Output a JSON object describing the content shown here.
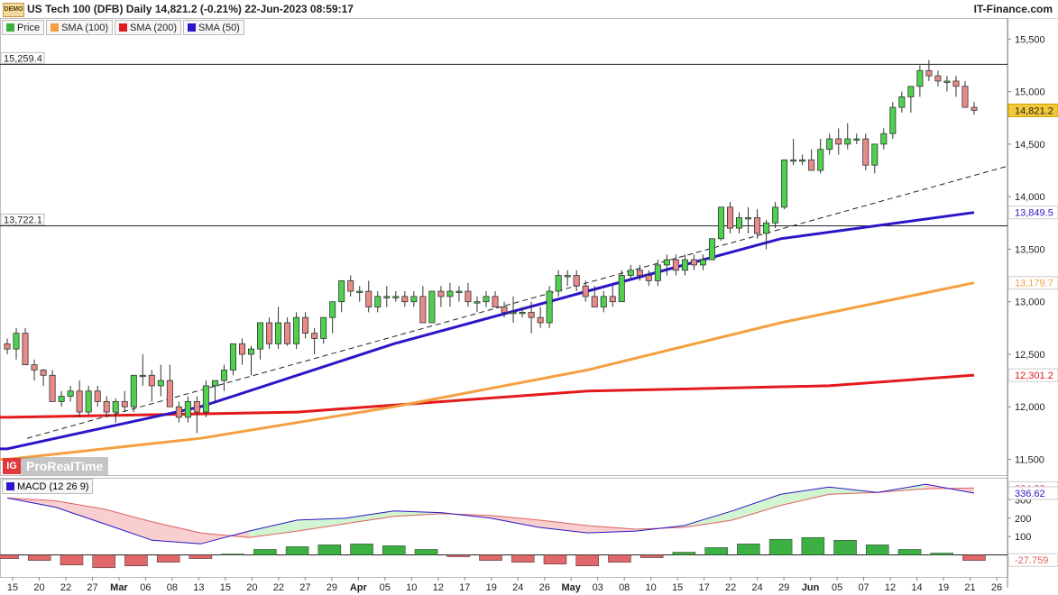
{
  "header": {
    "badge": "DEMO",
    "title": "US Tech 100 (DFB) Daily 14,821.2 (-0.21%) 22-Jun-2023 08:59:17",
    "brand": "IT-Finance.com"
  },
  "legend": [
    {
      "label": "Price",
      "color": "#3cb043"
    },
    {
      "label": "SMA (100)",
      "color": "#f5a040"
    },
    {
      "label": "SMA (200)",
      "color": "#e3191b"
    },
    {
      "label": "SMA (50)",
      "color": "#2a16c8"
    }
  ],
  "logo": {
    "badge": "IG",
    "text": "ProRealTime"
  },
  "macd_label": "MACD (12 26 9)",
  "colors": {
    "up": "#4ed24e",
    "down": "#e88a8a",
    "sma50": "#2a16c8",
    "sma100": "#f5a040",
    "sma200": "#e3191b",
    "hist": "#3cb043",
    "hist_neg": "#e0686a"
  },
  "chart_data": [
    {
      "type": "candlestick",
      "ylim": [
        11350,
        15700
      ],
      "y_ticks": [
        "11,500",
        "12,000",
        "12,500",
        "13,000",
        "13,500",
        "14,000",
        "14,500",
        "15,000",
        "15,500"
      ],
      "y_tick_values": [
        11500,
        12000,
        12500,
        13000,
        13500,
        14000,
        14500,
        15000,
        15500
      ],
      "x_tick_labels": [
        "15",
        "20",
        "22",
        "27",
        "Mar",
        "06",
        "08",
        "13",
        "15",
        "20",
        "22",
        "27",
        "29",
        "Apr",
        "05",
        "10",
        "12",
        "17",
        "19",
        "24",
        "26",
        "May",
        "03",
        "08",
        "10",
        "15",
        "17",
        "22",
        "24",
        "29",
        "Jun",
        "05",
        "07",
        "12",
        "14",
        "19",
        "21",
        "26"
      ],
      "levels": [
        {
          "label": "15,259.4",
          "value": 15259.4
        },
        {
          "label": "13,722.1",
          "value": 13722.1
        }
      ],
      "value_tags": [
        {
          "label": "14,821.2",
          "value": 14821.2,
          "color": "#f3c93a"
        },
        {
          "label": "13,849.5",
          "value": 13849.5,
          "color": "#2a16c8"
        },
        {
          "label": "13,179.7",
          "value": 13179.7,
          "color": "#f5a040"
        },
        {
          "label": "12,301.2",
          "value": 12301.2,
          "color": "#e3191b"
        }
      ],
      "trendline": {
        "from": 11700,
        "to": 14290
      },
      "candles": [
        [
          12600,
          12650,
          12500,
          12550
        ],
        [
          12550,
          12750,
          12450,
          12700
        ],
        [
          12700,
          12750,
          12400,
          12400
        ],
        [
          12400,
          12450,
          12250,
          12350
        ],
        [
          12350,
          12360,
          12200,
          12300
        ],
        [
          12300,
          12350,
          12050,
          12050
        ],
        [
          12050,
          12150,
          12000,
          12100
        ],
        [
          12100,
          12200,
          12050,
          12150
        ],
        [
          12150,
          12250,
          11900,
          11950
        ],
        [
          11950,
          12200,
          11920,
          12150
        ],
        [
          12150,
          12200,
          12000,
          12050
        ],
        [
          12050,
          12100,
          11900,
          11950
        ],
        [
          11950,
          12080,
          11850,
          12050
        ],
        [
          12050,
          12150,
          11950,
          12000
        ],
        [
          12000,
          12300,
          11950,
          12300
        ],
        [
          12300,
          12500,
          12200,
          12300
        ],
        [
          12300,
          12350,
          12050,
          12200
        ],
        [
          12200,
          12400,
          12100,
          12250
        ],
        [
          12250,
          12400,
          12000,
          12000
        ],
        [
          12000,
          12050,
          11850,
          11900
        ],
        [
          11900,
          12100,
          11850,
          12050
        ],
        [
          12050,
          12100,
          11750,
          11950
        ],
        [
          11950,
          12250,
          11900,
          12200
        ],
        [
          12200,
          12250,
          12050,
          12250
        ],
        [
          12250,
          12400,
          12150,
          12350
        ],
        [
          12350,
          12600,
          12300,
          12600
        ],
        [
          12600,
          12650,
          12400,
          12500
        ],
        [
          12500,
          12580,
          12300,
          12550
        ],
        [
          12550,
          12800,
          12450,
          12800
        ],
        [
          12800,
          12850,
          12550,
          12600
        ],
        [
          12600,
          12950,
          12550,
          12800
        ],
        [
          12800,
          12850,
          12580,
          12600
        ],
        [
          12600,
          12900,
          12550,
          12850
        ],
        [
          12850,
          12900,
          12650,
          12700
        ],
        [
          12700,
          12750,
          12500,
          12650
        ],
        [
          12650,
          12850,
          12600,
          12850
        ],
        [
          12850,
          13000,
          12700,
          13000
        ],
        [
          13000,
          13200,
          12900,
          13200
        ],
        [
          13200,
          13250,
          13050,
          13100
        ],
        [
          13100,
          13150,
          13000,
          13100
        ],
        [
          13100,
          13200,
          12900,
          12950
        ],
        [
          12950,
          13100,
          12900,
          13050
        ],
        [
          13050,
          13150,
          12950,
          13050
        ],
        [
          13050,
          13100,
          13000,
          13050
        ],
        [
          13050,
          13100,
          12950,
          13000
        ],
        [
          13000,
          13100,
          12950,
          13050
        ],
        [
          13050,
          13150,
          12800,
          12800
        ],
        [
          12800,
          13100,
          12800,
          13100
        ],
        [
          13100,
          13150,
          12950,
          13050
        ],
        [
          13050,
          13180,
          12950,
          13100
        ],
        [
          13100,
          13150,
          13000,
          13100
        ],
        [
          13100,
          13180,
          12950,
          13000
        ],
        [
          13000,
          13050,
          12900,
          13000
        ],
        [
          13000,
          13100,
          12950,
          13050
        ],
        [
          13050,
          13100,
          12950,
          12950
        ],
        [
          12950,
          13000,
          12850,
          12900
        ],
        [
          12900,
          13050,
          12800,
          12900
        ],
        [
          12900,
          12950,
          12850,
          12900
        ],
        [
          12900,
          13000,
          12700,
          12850
        ],
        [
          12850,
          12950,
          12750,
          12800
        ],
        [
          12800,
          13150,
          12750,
          13100
        ],
        [
          13100,
          13300,
          13050,
          13250
        ],
        [
          13250,
          13300,
          13150,
          13250
        ],
        [
          13250,
          13300,
          13100,
          13150
        ],
        [
          13150,
          13200,
          13000,
          13050
        ],
        [
          13050,
          13150,
          12950,
          12950
        ],
        [
          12950,
          13100,
          12900,
          13050
        ],
        [
          13050,
          13150,
          12950,
          13000
        ],
        [
          13000,
          13300,
          13000,
          13250
        ],
        [
          13250,
          13350,
          13200,
          13300
        ],
        [
          13300,
          13350,
          13200,
          13250
        ],
        [
          13250,
          13300,
          13150,
          13200
        ],
        [
          13200,
          13400,
          13150,
          13350
        ],
        [
          13350,
          13450,
          13250,
          13400
        ],
        [
          13400,
          13450,
          13250,
          13300
        ],
        [
          13300,
          13450,
          13250,
          13400
        ],
        [
          13400,
          13450,
          13300,
          13350
        ],
        [
          13350,
          13450,
          13300,
          13400
        ],
        [
          13400,
          13600,
          13400,
          13600
        ],
        [
          13600,
          13900,
          13580,
          13900
        ],
        [
          13900,
          13950,
          13650,
          13700
        ],
        [
          13700,
          13850,
          13650,
          13800
        ],
        [
          13800,
          13900,
          13650,
          13800
        ],
        [
          13800,
          13880,
          13600,
          13650
        ],
        [
          13650,
          13780,
          13500,
          13750
        ],
        [
          13750,
          13950,
          13700,
          13900
        ],
        [
          13900,
          14350,
          13880,
          14350
        ],
        [
          14350,
          14550,
          14300,
          14350
        ],
        [
          14350,
          14400,
          14300,
          14350
        ],
        [
          14350,
          14450,
          14250,
          14250
        ],
        [
          14250,
          14550,
          14220,
          14450
        ],
        [
          14450,
          14600,
          14400,
          14550
        ],
        [
          14550,
          14650,
          14400,
          14500
        ],
        [
          14500,
          14700,
          14450,
          14550
        ],
        [
          14550,
          14600,
          14500,
          14550
        ],
        [
          14550,
          14600,
          14250,
          14300
        ],
        [
          14300,
          14500,
          14220,
          14500
        ],
        [
          14500,
          14650,
          14450,
          14600
        ],
        [
          14600,
          14900,
          14550,
          14850
        ],
        [
          14850,
          15000,
          14800,
          14950
        ],
        [
          14950,
          15050,
          14800,
          15050
        ],
        [
          15050,
          15250,
          14950,
          15200
        ],
        [
          15200,
          15300,
          15100,
          15150
        ],
        [
          15150,
          15200,
          15050,
          15100
        ],
        [
          15100,
          15150,
          15000,
          15100
        ],
        [
          15100,
          15150,
          14950,
          15050
        ],
        [
          15050,
          15100,
          14850,
          14850
        ],
        [
          14850,
          14900,
          14780,
          14821.2
        ]
      ],
      "sma50": [
        [
          0,
          11600
        ],
        [
          0.2,
          12000
        ],
        [
          0.4,
          12600
        ],
        [
          0.6,
          13100
        ],
        [
          0.8,
          13600
        ],
        [
          1,
          13849.5
        ]
      ],
      "sma100": [
        [
          0,
          11500
        ],
        [
          0.2,
          11700
        ],
        [
          0.4,
          12000
        ],
        [
          0.6,
          12350
        ],
        [
          0.8,
          12800
        ],
        [
          1,
          13179.7
        ]
      ],
      "sma200": [
        [
          0,
          11900
        ],
        [
          0.3,
          11950
        ],
        [
          0.6,
          12150
        ],
        [
          0.85,
          12200
        ],
        [
          1,
          12301.2
        ]
      ]
    },
    {
      "type": "macd",
      "title": "MACD (12 26 9)",
      "ylim": [
        -120,
        420
      ],
      "y_ticks": [
        "100",
        "200",
        "300"
      ],
      "y_tick_values": [
        100,
        200,
        300
      ],
      "value_tags": [
        {
          "label": "364.38",
          "value": 364.38,
          "color": "#e06060"
        },
        {
          "label": "336.62",
          "value": 336.62,
          "color": "#2a16c8"
        },
        {
          "label": "-27.759",
          "value": -27.759,
          "color": "#e06060"
        }
      ],
      "macd_line": [
        [
          0,
          310
        ],
        [
          0.05,
          260
        ],
        [
          0.1,
          170
        ],
        [
          0.15,
          80
        ],
        [
          0.2,
          60
        ],
        [
          0.25,
          130
        ],
        [
          0.3,
          190
        ],
        [
          0.35,
          200
        ],
        [
          0.4,
          240
        ],
        [
          0.45,
          230
        ],
        [
          0.5,
          200
        ],
        [
          0.55,
          150
        ],
        [
          0.6,
          120
        ],
        [
          0.65,
          130
        ],
        [
          0.7,
          160
        ],
        [
          0.75,
          240
        ],
        [
          0.8,
          330
        ],
        [
          0.85,
          370
        ],
        [
          0.9,
          340
        ],
        [
          0.95,
          385
        ],
        [
          1,
          336.62
        ]
      ],
      "signal_line": [
        [
          0,
          310
        ],
        [
          0.05,
          295
        ],
        [
          0.1,
          250
        ],
        [
          0.15,
          180
        ],
        [
          0.2,
          120
        ],
        [
          0.25,
          95
        ],
        [
          0.3,
          130
        ],
        [
          0.35,
          170
        ],
        [
          0.4,
          210
        ],
        [
          0.45,
          225
        ],
        [
          0.5,
          215
        ],
        [
          0.55,
          190
        ],
        [
          0.6,
          160
        ],
        [
          0.65,
          140
        ],
        [
          0.7,
          150
        ],
        [
          0.75,
          190
        ],
        [
          0.8,
          270
        ],
        [
          0.85,
          330
        ],
        [
          0.9,
          340
        ],
        [
          0.95,
          360
        ],
        [
          1,
          364.38
        ]
      ],
      "histogram": [
        -20,
        -30,
        -55,
        -70,
        -60,
        -40,
        -20,
        5,
        30,
        45,
        55,
        60,
        50,
        30,
        -10,
        -30,
        -40,
        -50,
        -60,
        -40,
        -15,
        15,
        40,
        60,
        85,
        95,
        80,
        55,
        30,
        10,
        -30
      ]
    }
  ]
}
